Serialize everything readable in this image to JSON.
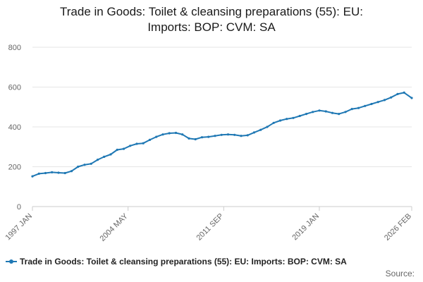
{
  "chart_data": {
    "type": "line",
    "title_line1": "Trade in Goods: Toilet & cleansing preparations (55): EU:",
    "title_line2": "Imports: BOP: CVM: SA",
    "xlabel": "",
    "ylabel": "",
    "ylim": [
      0,
      800
    ],
    "yticks": [
      "0",
      "200",
      "400",
      "600",
      "800"
    ],
    "xticks": [
      "1997 JAN",
      "2004 MAY",
      "2011 SEP",
      "2019 JAN",
      "2026 FEB"
    ],
    "grid": true,
    "legend_position": "bottom",
    "series": [
      {
        "name": "Trade in Goods: Toilet & cleansing preparations (55): EU: Imports: BOP: CVM: SA",
        "color": "#1f78b4",
        "points": [
          [
            "1997-01",
            152
          ],
          [
            "1997-07",
            165
          ],
          [
            "1998-01",
            168
          ],
          [
            "1998-07",
            172
          ],
          [
            "1999-01",
            170
          ],
          [
            "1999-07",
            168
          ],
          [
            "2000-01",
            178
          ],
          [
            "2000-07",
            200
          ],
          [
            "2001-01",
            210
          ],
          [
            "2001-07",
            215
          ],
          [
            "2002-01",
            235
          ],
          [
            "2002-07",
            250
          ],
          [
            "2003-01",
            262
          ],
          [
            "2003-07",
            285
          ],
          [
            "2004-01",
            290
          ],
          [
            "2004-07",
            305
          ],
          [
            "2005-01",
            315
          ],
          [
            "2005-07",
            318
          ],
          [
            "2006-01",
            335
          ],
          [
            "2006-07",
            350
          ],
          [
            "2007-01",
            362
          ],
          [
            "2007-07",
            368
          ],
          [
            "2008-01",
            370
          ],
          [
            "2008-07",
            362
          ],
          [
            "2009-01",
            342
          ],
          [
            "2009-07",
            338
          ],
          [
            "2010-01",
            348
          ],
          [
            "2010-07",
            350
          ],
          [
            "2011-01",
            355
          ],
          [
            "2011-07",
            360
          ],
          [
            "2012-01",
            362
          ],
          [
            "2012-07",
            360
          ],
          [
            "2013-01",
            355
          ],
          [
            "2013-07",
            358
          ],
          [
            "2014-01",
            372
          ],
          [
            "2014-07",
            385
          ],
          [
            "2015-01",
            400
          ],
          [
            "2015-07",
            420
          ],
          [
            "2016-01",
            432
          ],
          [
            "2016-07",
            440
          ],
          [
            "2017-01",
            445
          ],
          [
            "2017-07",
            455
          ],
          [
            "2018-01",
            465
          ],
          [
            "2018-07",
            475
          ],
          [
            "2019-01",
            482
          ],
          [
            "2019-07",
            478
          ],
          [
            "2020-01",
            470
          ],
          [
            "2020-07",
            465
          ],
          [
            "2021-01",
            475
          ],
          [
            "2021-07",
            490
          ],
          [
            "2022-01",
            495
          ],
          [
            "2022-07",
            505
          ],
          [
            "2023-01",
            515
          ],
          [
            "2023-07",
            525
          ],
          [
            "2024-01",
            535
          ],
          [
            "2024-07",
            548
          ],
          [
            "2025-01",
            565
          ],
          [
            "2025-07",
            572
          ],
          [
            "2026-02",
            545
          ]
        ]
      }
    ]
  },
  "footer": {
    "source_label": "Source:"
  }
}
